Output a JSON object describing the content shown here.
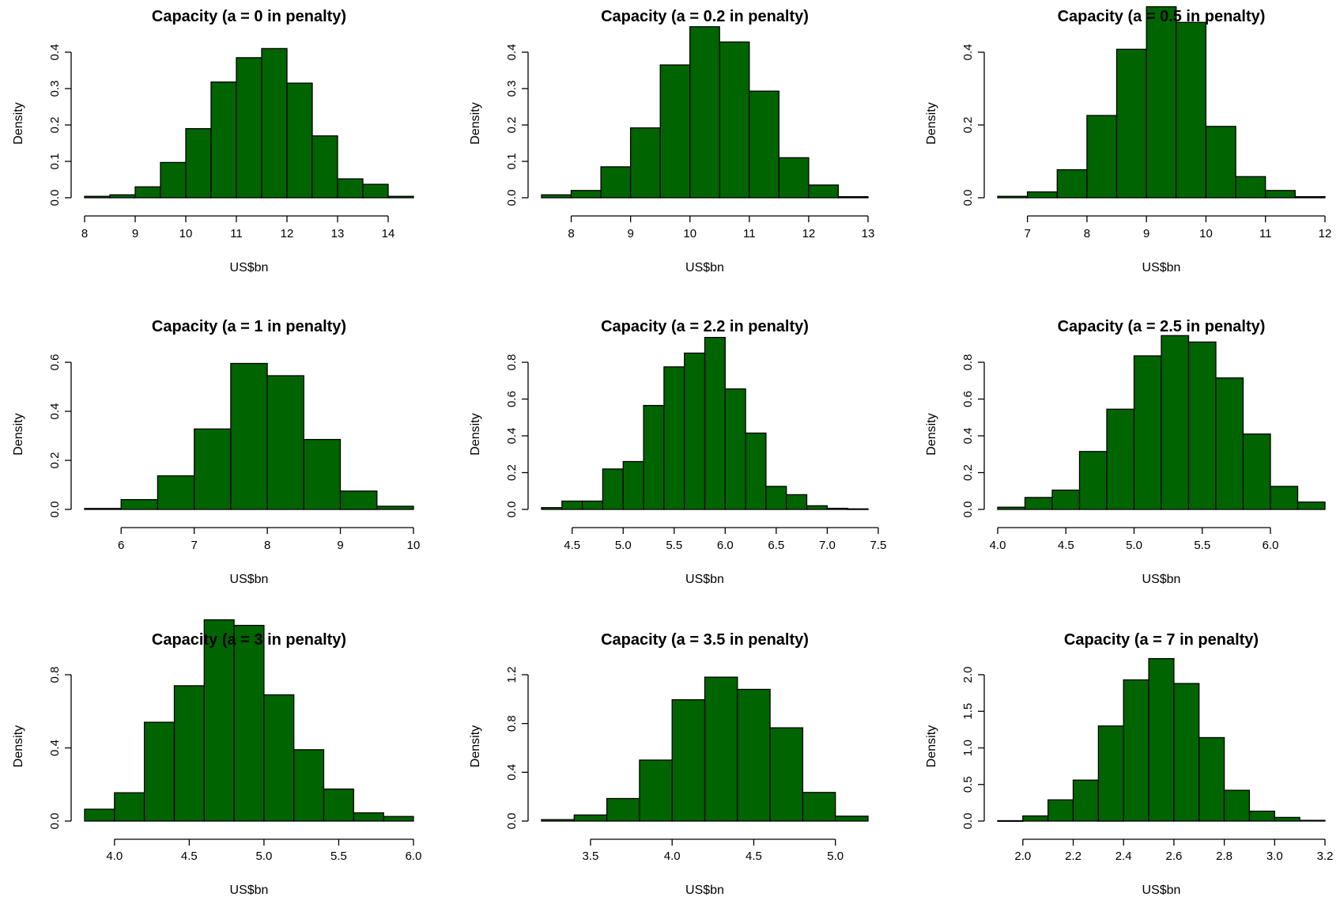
{
  "colors": {
    "bar_fill": "#006400",
    "bar_stroke": "#000000"
  },
  "chart_data": [
    {
      "type": "bar",
      "title": "Capacity (a = 0 in penalty)",
      "xlabel": "US$bn",
      "ylabel": "Density",
      "xlim": [
        8,
        14.5
      ],
      "ylim": [
        0,
        0.4
      ],
      "xticks": [
        8,
        9,
        10,
        11,
        12,
        13,
        14
      ],
      "xtick_labels": [
        "8",
        "9",
        "10",
        "11",
        "12",
        "13",
        "14"
      ],
      "yticks": [
        0,
        0.1,
        0.2,
        0.3,
        0.4
      ],
      "ytick_labels": [
        "0.0",
        "0.1",
        "0.2",
        "0.3",
        "0.4"
      ],
      "bin_width": 0.5,
      "bin_starts": [
        8,
        8.5,
        9,
        9.5,
        10,
        10.5,
        11,
        11.5,
        12,
        12.5,
        13,
        13.5,
        14
      ],
      "values": [
        0.004,
        0.008,
        0.03,
        0.097,
        0.19,
        0.318,
        0.385,
        0.41,
        0.315,
        0.17,
        0.052,
        0.037,
        0.004
      ]
    },
    {
      "type": "bar",
      "title": "Capacity (a = 0.2 in penalty)",
      "xlabel": "US$bn",
      "ylabel": "Density",
      "xlim": [
        7.5,
        13
      ],
      "ylim": [
        0,
        0.4
      ],
      "xticks": [
        8,
        9,
        10,
        11,
        12,
        13
      ],
      "xtick_labels": [
        "8",
        "9",
        "10",
        "11",
        "12",
        "13"
      ],
      "yticks": [
        0,
        0.1,
        0.2,
        0.3,
        0.4
      ],
      "ytick_labels": [
        "0.0",
        "0.1",
        "0.2",
        "0.3",
        "0.4"
      ],
      "bin_width": 0.5,
      "bin_starts": [
        7.5,
        8,
        8.5,
        9,
        9.5,
        10,
        10.5,
        11,
        11.5,
        12,
        12.5
      ],
      "values": [
        0.008,
        0.02,
        0.085,
        0.192,
        0.365,
        0.47,
        0.428,
        0.293,
        0.11,
        0.035,
        0.003
      ]
    },
    {
      "type": "bar",
      "title": "Capacity (a = 0.5 in penalty)",
      "xlabel": "US$bn",
      "ylabel": "Density",
      "xlim": [
        6.5,
        12
      ],
      "ylim": [
        0,
        0.4
      ],
      "xticks": [
        7,
        8,
        9,
        10,
        11,
        12
      ],
      "xtick_labels": [
        "7",
        "8",
        "9",
        "10",
        "11",
        "12"
      ],
      "yticks": [
        0,
        0.2,
        0.4
      ],
      "ytick_labels": [
        "0.0",
        "0.2",
        "0.4"
      ],
      "bin_width": 0.5,
      "bin_starts": [
        6.5,
        7,
        7.5,
        8,
        8.5,
        9,
        9.5,
        10,
        10.5,
        11,
        11.5
      ],
      "values": [
        0.004,
        0.016,
        0.077,
        0.226,
        0.408,
        0.525,
        0.482,
        0.196,
        0.058,
        0.02,
        0.003
      ]
    },
    {
      "type": "bar",
      "title": "Capacity (a = 1 in penalty)",
      "xlabel": "US$bn",
      "ylabel": "Density",
      "xlim": [
        5.5,
        10
      ],
      "ylim": [
        0,
        0.6
      ],
      "xticks": [
        6,
        7,
        8,
        9,
        10
      ],
      "xtick_labels": [
        "6",
        "7",
        "8",
        "9",
        "10"
      ],
      "yticks": [
        0,
        0.2,
        0.4,
        0.6
      ],
      "ytick_labels": [
        "0.0",
        "0.2",
        "0.4",
        "0.6"
      ],
      "bin_width": 0.5,
      "bin_starts": [
        5.5,
        6,
        6.5,
        7,
        7.5,
        8,
        8.5,
        9,
        9.5
      ],
      "values": [
        0.004,
        0.04,
        0.137,
        0.328,
        0.595,
        0.545,
        0.285,
        0.075,
        0.013
      ]
    },
    {
      "type": "bar",
      "title": "Capacity (a = 2.2 in penalty)",
      "xlabel": "US$bn",
      "ylabel": "Density",
      "xlim": [
        4.2,
        7.4
      ],
      "ylim": [
        0,
        0.8
      ],
      "xticks": [
        4.5,
        5.0,
        5.5,
        6.0,
        6.5,
        7.0,
        7.5
      ],
      "xtick_labels": [
        "4.5",
        "5.0",
        "5.5",
        "6.0",
        "6.5",
        "7.0",
        "7.5"
      ],
      "yticks": [
        0,
        0.2,
        0.4,
        0.6,
        0.8
      ],
      "ytick_labels": [
        "0.0",
        "0.2",
        "0.4",
        "0.6",
        "0.8"
      ],
      "bin_width": 0.2,
      "bin_starts": [
        4.2,
        4.4,
        4.6,
        4.8,
        5,
        5.2,
        5.4,
        5.6,
        5.8,
        6,
        6.2,
        6.4,
        6.6,
        6.8,
        7,
        7.2
      ],
      "values": [
        0.01,
        0.045,
        0.045,
        0.22,
        0.26,
        0.565,
        0.775,
        0.85,
        0.935,
        0.655,
        0.415,
        0.125,
        0.08,
        0.02,
        0.006,
        0.003
      ]
    },
    {
      "type": "bar",
      "title": "Capacity (a = 2.5 in penalty)",
      "xlabel": "US$bn",
      "ylabel": "Density",
      "xlim": [
        4.0,
        6.4
      ],
      "ylim": [
        0,
        0.8
      ],
      "xticks": [
        4.0,
        4.5,
        5.0,
        5.5,
        6.0
      ],
      "xtick_labels": [
        "4.0",
        "4.5",
        "5.0",
        "5.5",
        "6.0"
      ],
      "yticks": [
        0,
        0.2,
        0.4,
        0.6,
        0.8
      ],
      "ytick_labels": [
        "0.0",
        "0.2",
        "0.4",
        "0.6",
        "0.8"
      ],
      "bin_width": 0.2,
      "bin_starts": [
        4,
        4.2,
        4.4,
        4.6,
        4.8,
        5,
        5.2,
        5.4,
        5.6,
        5.8,
        6,
        6.2
      ],
      "values": [
        0.012,
        0.065,
        0.105,
        0.315,
        0.545,
        0.835,
        0.945,
        0.91,
        0.715,
        0.41,
        0.125,
        0.04
      ]
    },
    {
      "type": "bar",
      "title": "Capacity (a = 3 in penalty)",
      "xlabel": "US$bn",
      "ylabel": "Density",
      "xlim": [
        3.8,
        6.0
      ],
      "ylim": [
        0,
        0.8
      ],
      "xticks": [
        4.0,
        4.5,
        5.0,
        5.5,
        6.0
      ],
      "xtick_labels": [
        "4.0",
        "4.5",
        "5.0",
        "5.5",
        "6.0"
      ],
      "yticks": [
        0,
        0.4,
        0.8
      ],
      "ytick_labels": [
        "0.0",
        "0.4",
        "0.8"
      ],
      "bin_width": 0.2,
      "bin_starts": [
        3.8,
        4,
        4.2,
        4.4,
        4.6,
        4.8,
        5,
        5.2,
        5.4,
        5.6,
        5.8
      ],
      "values": [
        0.065,
        0.155,
        0.54,
        0.74,
        1.1,
        1.07,
        0.69,
        0.39,
        0.175,
        0.045,
        0.025
      ]
    },
    {
      "type": "bar",
      "title": "Capacity (a = 3.5 in penalty)",
      "xlabel": "US$bn",
      "ylabel": "Density",
      "xlim": [
        3.2,
        5.2
      ],
      "ylim": [
        0,
        1.2
      ],
      "xticks": [
        3.5,
        4.0,
        4.5,
        5.0
      ],
      "xtick_labels": [
        "3.5",
        "4.0",
        "4.5",
        "5.0"
      ],
      "yticks": [
        0,
        0.4,
        0.8,
        1.2
      ],
      "ytick_labels": [
        "0.0",
        "0.4",
        "0.8",
        "1.2"
      ],
      "bin_width": 0.2,
      "bin_starts": [
        3.2,
        3.4,
        3.6,
        3.8,
        4,
        4.2,
        4.4,
        4.6,
        4.8,
        5
      ],
      "values": [
        0.012,
        0.05,
        0.185,
        0.5,
        0.995,
        1.18,
        1.08,
        0.765,
        0.235,
        0.04
      ]
    },
    {
      "type": "bar",
      "title": "Capacity (a = 7 in penalty)",
      "xlabel": "US$bn",
      "ylabel": "Density",
      "xlim": [
        1.9,
        3.2
      ],
      "ylim": [
        0,
        2.0
      ],
      "xticks": [
        2.0,
        2.2,
        2.4,
        2.6,
        2.8,
        3.0,
        3.2
      ],
      "xtick_labels": [
        "2.0",
        "2.2",
        "2.4",
        "2.6",
        "2.8",
        "3.0",
        "3.2"
      ],
      "yticks": [
        0,
        0.5,
        1.0,
        1.5,
        2.0
      ],
      "ytick_labels": [
        "0.0",
        "0.5",
        "1.0",
        "1.5",
        "2.0"
      ],
      "bin_width": 0.1,
      "bin_starts": [
        1.9,
        2,
        2.1,
        2.2,
        2.3,
        2.4,
        2.5,
        2.6,
        2.7,
        2.8,
        2.9,
        3,
        3.1
      ],
      "values": [
        0.005,
        0.07,
        0.29,
        0.56,
        1.3,
        1.93,
        2.22,
        1.88,
        1.14,
        0.42,
        0.135,
        0.05,
        0.01
      ]
    }
  ]
}
